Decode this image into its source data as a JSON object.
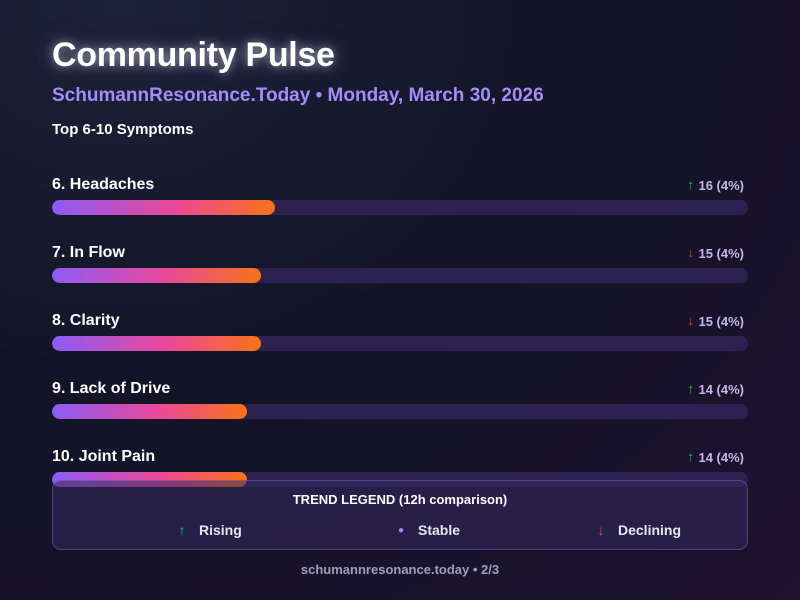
{
  "header": {
    "title": "Community Pulse",
    "subtitle": "SchumannResonance.Today • Monday, March 30, 2026",
    "section_label": "Top 6-10 Symptoms"
  },
  "colors": {
    "accent": "#a78bfa",
    "rising": "#22c55e",
    "declining": "#ef4444",
    "bar_start": "#8b5cf6",
    "bar_mid": "#ec4899",
    "bar_end": "#f97316",
    "track": "#2c2150"
  },
  "chart_data": {
    "type": "bar",
    "orientation": "horizontal",
    "title": "Top 6-10 Symptoms",
    "scale_max": 50,
    "categories": [
      "6. Headaches",
      "7. In Flow",
      "8. Clarity",
      "9. Lack of Drive",
      "10. Joint Pain"
    ],
    "values": [
      16,
      15,
      15,
      14,
      14
    ],
    "value_labels": [
      "16 (4%)",
      "15 (4%)",
      "15 (4%)",
      "14 (4%)",
      "14 (4%)"
    ],
    "trends": [
      "rising",
      "declining",
      "declining",
      "rising",
      "rising"
    ],
    "trend_icons": [
      "arrow-up-icon",
      "arrow-down-icon",
      "arrow-down-icon",
      "arrow-up-icon",
      "arrow-up-icon"
    ]
  },
  "legend": {
    "title": "TREND LEGEND (12h comparison)",
    "items": [
      {
        "symbol": "↑",
        "icon": "arrow-up-icon",
        "label": "Rising"
      },
      {
        "symbol": "●",
        "icon": "dot-icon",
        "label": "Stable"
      },
      {
        "symbol": "↓",
        "icon": "arrow-down-icon",
        "label": "Declining"
      }
    ]
  },
  "footer": {
    "text": "schumannresonance.today • 2/3"
  }
}
